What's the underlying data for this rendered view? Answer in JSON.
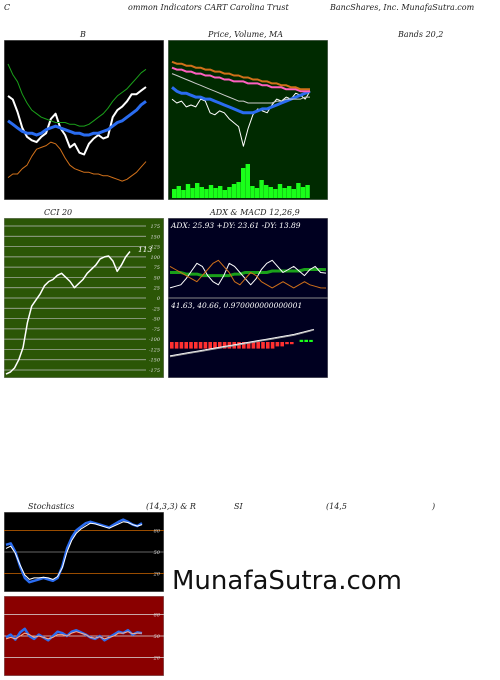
{
  "header": {
    "left": "C",
    "middle": "ommon  Indicators CART Carolina  Trust",
    "right": "BancShares,  Inc. MunafaSutra.com"
  },
  "titles": {
    "b": "B",
    "price": "Price,  Volume,  MA",
    "bands": "Bands 20,2",
    "cci": "CCI 20",
    "adx": "ADX  & MACD 12,26,9",
    "stoch_a": "Stochastics",
    "stoch_b": "(14,3,3) & R",
    "stoch_c": "SI",
    "stoch_d": "(14,5",
    "stoch_e": ")"
  },
  "watermark": "MunafaSutra.com",
  "colors": {
    "black_panel": "#000000",
    "green_panel": "#002a00",
    "cci_panel": "#2b5606",
    "adx_panel": "#000020",
    "rsi_panel": "#8a0000",
    "blue": "#2a6cf0",
    "green_line": "#1aa01a",
    "orange": "#d0701a",
    "white": "#ffffff",
    "volume": "#1aff1a",
    "macd_red": "#ff3030"
  },
  "chart_data": [
    {
      "type": "line",
      "panel": "bollinger",
      "title": "B",
      "x": [
        1,
        2,
        3,
        4,
        5,
        6,
        7,
        8,
        9,
        10,
        11,
        12,
        13,
        14,
        15,
        16,
        17,
        18,
        19,
        20,
        21,
        22,
        23,
        24,
        25,
        26,
        27,
        28,
        29,
        30
      ],
      "series": [
        {
          "values": [
            26.8,
            26.6,
            25.9,
            25.0,
            24.5,
            24.3,
            24.2,
            24.5,
            24.7,
            25.5,
            25.8,
            25.0,
            24.6,
            23.9,
            24.1,
            23.6,
            23.5,
            24.1,
            24.4,
            24.6,
            24.4,
            24.5,
            25.6,
            26.0,
            26.2,
            26.5,
            26.9,
            26.9,
            27.1,
            27.3
          ]
        },
        {
          "values": [
            25.4,
            25.2,
            25.0,
            24.8,
            24.7,
            24.7,
            24.6,
            24.7,
            24.9,
            25.0,
            25.1,
            25.0,
            24.9,
            24.8,
            24.7,
            24.7,
            24.6,
            24.6,
            24.7,
            24.7,
            24.8,
            24.9,
            25.1,
            25.3,
            25.4,
            25.6,
            25.8,
            26.0,
            26.3,
            26.5
          ]
        },
        {
          "values": [
            28.6,
            28.0,
            27.6,
            26.9,
            26.4,
            26.0,
            25.8,
            25.6,
            25.5,
            25.4,
            25.3,
            25.3,
            25.3,
            25.2,
            25.2,
            25.1,
            25.1,
            25.2,
            25.4,
            25.6,
            25.8,
            26.1,
            26.5,
            26.8,
            27.0,
            27.2,
            27.5,
            27.8,
            28.1,
            28.3
          ]
        },
        {
          "values": [
            22.2,
            22.4,
            22.4,
            22.7,
            22.9,
            23.4,
            23.8,
            23.9,
            24.0,
            24.2,
            24.1,
            23.8,
            23.3,
            22.9,
            22.7,
            22.6,
            22.5,
            22.5,
            22.4,
            22.4,
            22.3,
            22.3,
            22.2,
            22.1,
            22.0,
            22.1,
            22.3,
            22.5,
            22.8,
            23.1
          ]
        }
      ]
    },
    {
      "type": "line",
      "panel": "price_volume_ma",
      "title": "Price,  Volume,  MA",
      "x": [
        1,
        2,
        3,
        4,
        5,
        6,
        7,
        8,
        9,
        10,
        11,
        12,
        13,
        14,
        15,
        16,
        17,
        18,
        19,
        20,
        21,
        22,
        23,
        24,
        25,
        26,
        27,
        28,
        29,
        30
      ],
      "series": [
        {
          "values": [
            25.0,
            24.8,
            24.9,
            24.6,
            24.7,
            24.6,
            25.0,
            24.9,
            24.3,
            24.2,
            24.4,
            24.3,
            24.0,
            23.8,
            23.6,
            22.6,
            23.5,
            24.2,
            24.5,
            24.4,
            24.3,
            24.7,
            25.0,
            24.9,
            25.1,
            25.0,
            25.3,
            25.2,
            25.0,
            25.4
          ]
        },
        {
          "values": [
            25.6,
            25.4,
            25.3,
            25.3,
            25.2,
            25.1,
            25.1,
            25.0,
            25.0,
            24.9,
            24.8,
            24.7,
            24.6,
            24.5,
            24.4,
            24.3,
            24.3,
            24.3,
            24.4,
            24.5,
            24.5,
            24.6,
            24.7,
            24.8,
            24.9,
            25.0,
            25.1,
            25.2,
            25.3,
            25.4
          ]
        },
        {
          "values": [
            26.6,
            26.5,
            26.5,
            26.4,
            26.4,
            26.3,
            26.3,
            26.2,
            26.2,
            26.1,
            26.1,
            26.0,
            26.0,
            25.9,
            25.9,
            25.9,
            25.8,
            25.8,
            25.8,
            25.7,
            25.7,
            25.6,
            25.6,
            25.6,
            25.5,
            25.5,
            25.5,
            25.4,
            25.4,
            25.4
          ]
        },
        {
          "values": [
            26.9,
            26.8,
            26.8,
            26.7,
            26.7,
            26.6,
            26.6,
            26.5,
            26.5,
            26.4,
            26.4,
            26.3,
            26.3,
            26.2,
            26.2,
            26.1,
            26.1,
            26.0,
            26.0,
            25.9,
            25.9,
            25.8,
            25.8,
            25.7,
            25.7,
            25.6,
            25.6,
            25.5,
            25.5,
            25.5
          ]
        },
        {
          "values": [
            26.3,
            26.2,
            26.1,
            26.0,
            25.9,
            25.8,
            25.7,
            25.6,
            25.5,
            25.4,
            25.3,
            25.2,
            25.1,
            25.0,
            24.9,
            24.9,
            24.8,
            24.8,
            24.8,
            24.8,
            24.8,
            24.8,
            24.9,
            24.9,
            25.0,
            25.0,
            25.0,
            25.0,
            25.1,
            25.1
          ]
        }
      ],
      "volume": [
        9,
        12,
        8,
        14,
        10,
        15,
        11,
        9,
        13,
        10,
        12,
        8,
        11,
        14,
        16,
        30,
        34,
        12,
        10,
        18,
        13,
        11,
        9,
        14,
        10,
        12,
        9,
        15,
        11,
        13
      ]
    },
    {
      "type": "line",
      "panel": "cci",
      "title": "CCI 20",
      "ylim": [
        -175,
        175
      ],
      "y_ticks": [
        175,
        150,
        125,
        100,
        75,
        50,
        25,
        0,
        -25,
        -50,
        -75,
        -100,
        -125,
        -150,
        -175
      ],
      "annotation": "113",
      "x": [
        1,
        2,
        3,
        4,
        5,
        6,
        7,
        8,
        9,
        10,
        11,
        12,
        13,
        14,
        15,
        16,
        17,
        18,
        19,
        20,
        21,
        22,
        23,
        24,
        25,
        26,
        27,
        28,
        29,
        30
      ],
      "values": [
        -185,
        -180,
        -170,
        -150,
        -120,
        -60,
        -20,
        -5,
        10,
        30,
        40,
        45,
        55,
        60,
        50,
        40,
        25,
        35,
        45,
        60,
        70,
        80,
        95,
        100,
        102,
        90,
        65,
        80,
        100,
        113
      ]
    },
    {
      "type": "line",
      "panel": "adx",
      "title": "ADX  & MACD 12,26,9",
      "label": "ADX: 25.93  +DY: 23.61  -DY: 13.89",
      "x": [
        1,
        2,
        3,
        4,
        5,
        6,
        7,
        8,
        9,
        10,
        11,
        12,
        13,
        14,
        15,
        16,
        17,
        18,
        19,
        20,
        21,
        22,
        23,
        24,
        25,
        26,
        27,
        28,
        29,
        30
      ],
      "series": [
        {
          "values": [
            24,
            24,
            24,
            23,
            23,
            23,
            22,
            22,
            22,
            22,
            22,
            22,
            23,
            23,
            24,
            24,
            24,
            24,
            24,
            25,
            25,
            25,
            25,
            25,
            25,
            26,
            26,
            26,
            26,
            25.93
          ]
        },
        {
          "values": [
            14,
            15,
            16,
            20,
            25,
            30,
            28,
            22,
            18,
            16,
            22,
            30,
            28,
            24,
            20,
            16,
            20,
            26,
            30,
            32,
            28,
            24,
            26,
            28,
            25,
            22,
            26,
            28,
            24,
            23.61
          ]
        },
        {
          "values": [
            28,
            26,
            24,
            22,
            20,
            18,
            22,
            26,
            30,
            32,
            28,
            24,
            18,
            16,
            20,
            24,
            22,
            18,
            16,
            14,
            16,
            18,
            16,
            14,
            16,
            18,
            16,
            15,
            14,
            13.89
          ]
        }
      ]
    },
    {
      "type": "line",
      "panel": "macd",
      "label": "41.63,  40.66,  0.970000000000001",
      "x": [
        1,
        2,
        3,
        4,
        5,
        6,
        7,
        8,
        9,
        10,
        11,
        12,
        13,
        14,
        15,
        16,
        17,
        18,
        19,
        20,
        21,
        22,
        23,
        24,
        25,
        26,
        27,
        28,
        29,
        30
      ],
      "series": [
        {
          "values": [
            -20,
            -18,
            -16,
            -14,
            -12,
            -10,
            -8,
            -6,
            -4,
            -2,
            0,
            2,
            4,
            6,
            8,
            10,
            12,
            14,
            16,
            18,
            20,
            22,
            24,
            26,
            28,
            30,
            33,
            36,
            39,
            41.63
          ]
        },
        {
          "values": [
            -22,
            -20,
            -18,
            -16,
            -14,
            -12,
            -10,
            -8,
            -6,
            -4,
            -2,
            0,
            2,
            4,
            6,
            8,
            10,
            12,
            14,
            16,
            18,
            20,
            22,
            24,
            26,
            28,
            31,
            34,
            37,
            40.66
          ]
        }
      ],
      "histogram": [
        -3,
        -3,
        -3,
        -3,
        -3,
        -3,
        -3,
        -3,
        -3,
        -3,
        -3,
        -3,
        -3,
        -3,
        -3,
        -3,
        -3,
        -3,
        -3,
        -3,
        -3,
        -3,
        -2,
        -2,
        -1,
        -1,
        0,
        1,
        1,
        0.97
      ]
    },
    {
      "type": "line",
      "panel": "stochastics",
      "ylim": [
        0,
        100
      ],
      "y_ticks": [
        80,
        50,
        20
      ],
      "x": [
        1,
        2,
        3,
        4,
        5,
        6,
        7,
        8,
        9,
        10,
        11,
        12,
        13,
        14,
        15,
        16,
        17,
        18,
        19,
        20,
        21,
        22,
        23,
        24,
        25,
        26,
        27,
        28,
        29,
        30
      ],
      "series": [
        {
          "values": [
            60,
            62,
            50,
            30,
            14,
            8,
            10,
            12,
            14,
            12,
            10,
            14,
            30,
            55,
            70,
            80,
            85,
            90,
            92,
            90,
            88,
            86,
            84,
            88,
            92,
            95,
            92,
            88,
            86,
            90
          ]
        },
        {
          "values": [
            55,
            58,
            48,
            32,
            18,
            12,
            14,
            14,
            15,
            14,
            12,
            16,
            28,
            50,
            66,
            76,
            82,
            86,
            90,
            89,
            87,
            85,
            83,
            86,
            89,
            92,
            91,
            88,
            86,
            88
          ]
        }
      ]
    },
    {
      "type": "line",
      "panel": "rsi",
      "ylim": [
        0,
        100
      ],
      "y_ticks": [
        80,
        50,
        20
      ],
      "x": [
        1,
        2,
        3,
        4,
        5,
        6,
        7,
        8,
        9,
        10,
        11,
        12,
        13,
        14,
        15,
        16,
        17,
        18,
        19,
        20,
        21,
        22,
        23,
        24,
        25,
        26,
        27,
        28,
        29,
        30
      ],
      "series": [
        {
          "values": [
            48,
            52,
            45,
            55,
            60,
            50,
            46,
            52,
            48,
            44,
            50,
            56,
            54,
            50,
            56,
            58,
            55,
            52,
            48,
            46,
            50,
            44,
            48,
            52,
            56,
            54,
            58,
            52,
            55,
            54
          ]
        },
        {
          "values": [
            46,
            48,
            46,
            50,
            54,
            52,
            48,
            50,
            48,
            46,
            48,
            52,
            52,
            50,
            54,
            56,
            54,
            52,
            48,
            47,
            49,
            46,
            48,
            50,
            54,
            54,
            56,
            53,
            54,
            54
          ]
        }
      ]
    }
  ]
}
